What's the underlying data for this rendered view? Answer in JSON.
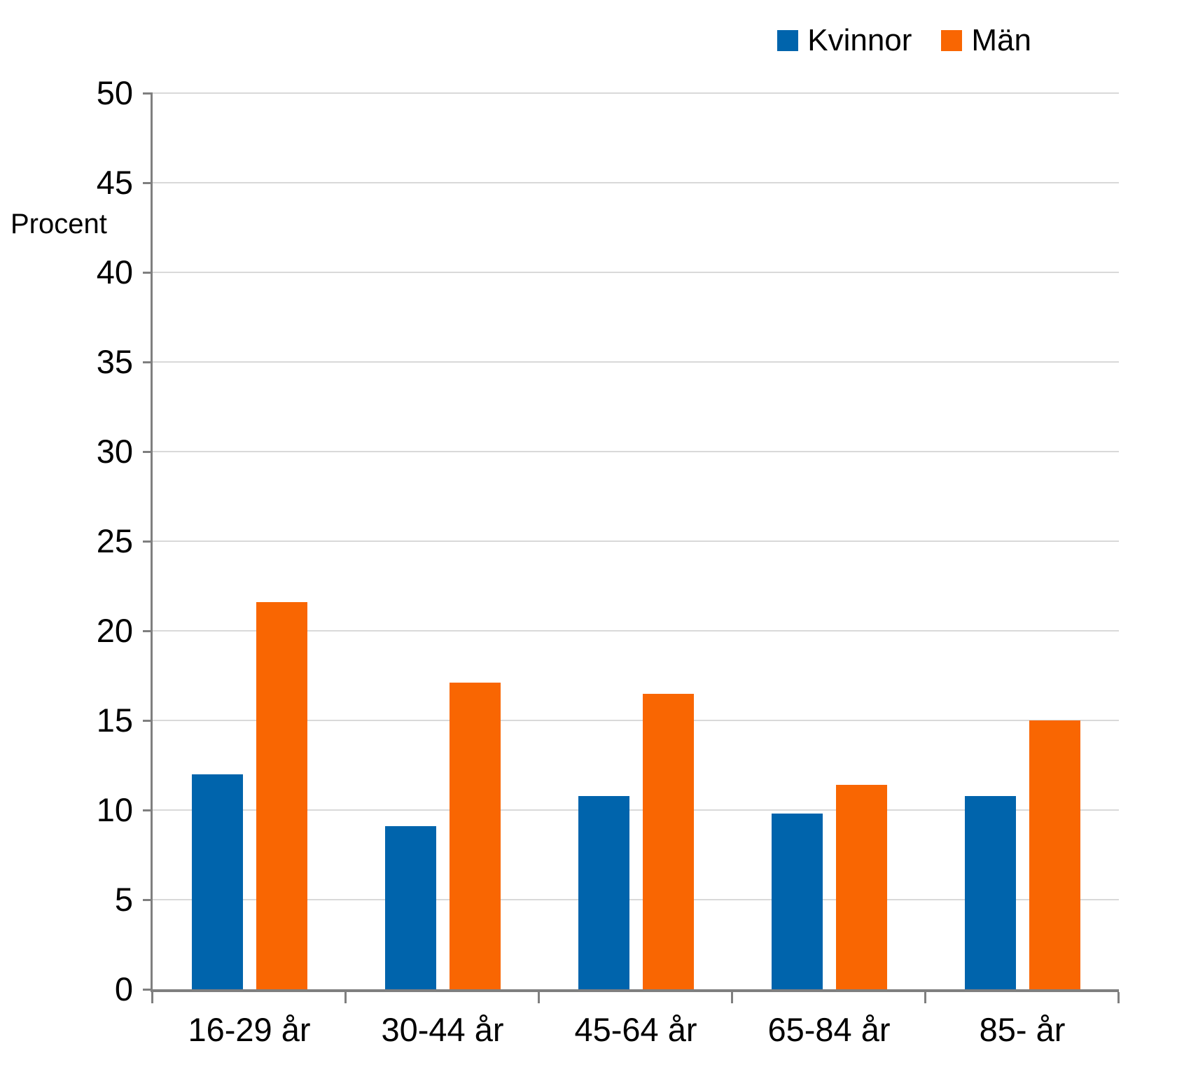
{
  "chart_data": {
    "type": "bar",
    "title": "",
    "xlabel": "",
    "ylabel": "Procent",
    "categories": [
      "16-29 år",
      "30-44 år",
      "45-64 år",
      "65-84 år",
      "85- år"
    ],
    "series": [
      {
        "name": "Kvinnor",
        "color": "#0064AC",
        "values": [
          12.0,
          9.1,
          10.8,
          9.8,
          10.8
        ]
      },
      {
        "name": "Män",
        "color": "#F96602",
        "values": [
          21.6,
          17.1,
          16.5,
          11.4,
          15.0
        ]
      }
    ],
    "ylim": [
      0,
      50
    ],
    "ytick_step": 5,
    "grid": true,
    "legend_position": "top-right"
  },
  "colors": {
    "background": "#FFFFFF",
    "gridline": "#D9D9D9",
    "axis": "#7F7F7F",
    "text": "#000000"
  }
}
